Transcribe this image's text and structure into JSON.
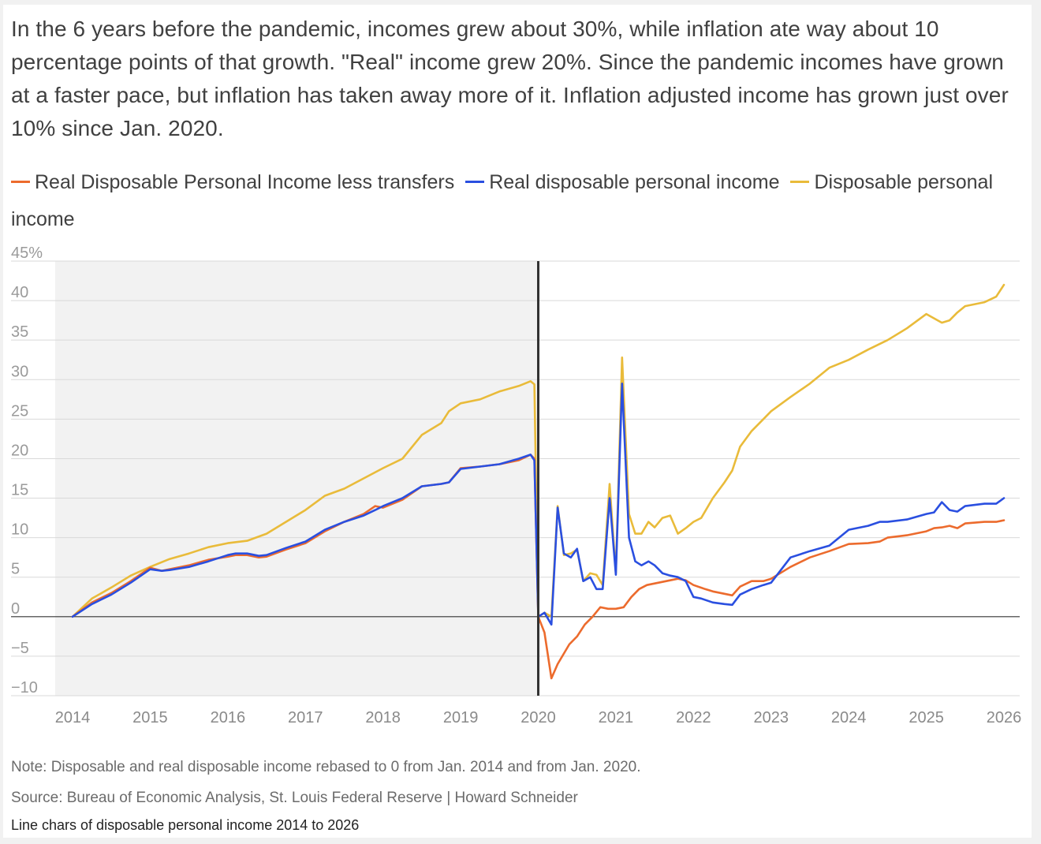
{
  "title": "In the 6 years before the pandemic, incomes grew about 30%, while inflation ate way about 10 percentage points of that growth. \"Real\" income grew 20%. Since the pandemic incomes have grown at a faster pace, but inflation has taken away more of it. Inflation adjusted income has grown just over 10% since Jan. 2020.",
  "note": "Note: Disposable and real disposable income rebased to 0 from Jan. 2014 and from Jan. 2020.",
  "source": "Source: Bureau of Economic Analysis, St. Louis Federal Reserve | Howard Schneider",
  "caption": "Line chars of disposable personal income 2014 to 2026",
  "colors": {
    "orange": "#ec6b2d",
    "blue": "#2a4fe0",
    "gold": "#e9bb3a",
    "shade": "#f2f2f2",
    "grid": "#d9d9d9",
    "divider": "#333333"
  },
  "chart_data": {
    "type": "line",
    "yunit": "%",
    "ylim": [
      -10,
      45
    ],
    "yticks": [
      -10,
      -5,
      0,
      5,
      10,
      15,
      20,
      25,
      30,
      35,
      40,
      45
    ],
    "xlim": [
      2014,
      2026
    ],
    "xticks": [
      2014,
      2015,
      2016,
      2017,
      2018,
      2019,
      2020,
      2021,
      2022,
      2023,
      2024,
      2025,
      2026
    ],
    "shaded_range": [
      2014,
      2020
    ],
    "divider_x": 2020,
    "grid": true,
    "legend_position": "top",
    "series": [
      {
        "name": "Real Disposable Personal Income less transfers",
        "color": "#ec6b2d",
        "x": [
          2014.0,
          2014.25,
          2014.5,
          2014.75,
          2015.0,
          2015.15,
          2015.25,
          2015.5,
          2015.75,
          2016.0,
          2016.1,
          2016.25,
          2016.4,
          2016.5,
          2016.75,
          2017.0,
          2017.25,
          2017.5,
          2017.75,
          2017.9,
          2018.0,
          2018.25,
          2018.5,
          2018.75,
          2018.85,
          2019.0,
          2019.25,
          2019.5,
          2019.75,
          2019.9,
          2019.95,
          2020.0,
          2020.08,
          2020.17,
          2020.25,
          2020.4,
          2020.5,
          2020.6,
          2020.7,
          2020.8,
          2020.9,
          2021.0,
          2021.1,
          2021.2,
          2021.3,
          2021.4,
          2021.5,
          2021.6,
          2021.7,
          2021.8,
          2021.9,
          2022.0,
          2022.15,
          2022.25,
          2022.35,
          2022.5,
          2022.6,
          2022.75,
          2022.9,
          2023.0,
          2023.25,
          2023.5,
          2023.75,
          2024.0,
          2024.25,
          2024.4,
          2024.5,
          2024.75,
          2025.0,
          2025.1,
          2025.2,
          2025.3,
          2025.4,
          2025.5,
          2025.75,
          2025.9,
          2026.0
        ],
        "values": [
          0,
          1.8,
          3.0,
          4.5,
          6.2,
          5.8,
          6.0,
          6.5,
          7.2,
          7.6,
          7.8,
          7.8,
          7.5,
          7.6,
          8.5,
          9.3,
          10.8,
          12.0,
          13.0,
          14.0,
          13.8,
          14.8,
          16.5,
          16.8,
          17.0,
          18.8,
          19.0,
          19.3,
          19.8,
          20.5,
          20.0,
          0,
          -2.0,
          -7.8,
          -6.0,
          -3.5,
          -2.5,
          -1.0,
          0.0,
          1.2,
          1.0,
          1.0,
          1.2,
          2.5,
          3.5,
          4.0,
          4.2,
          4.4,
          4.6,
          4.8,
          4.6,
          4.0,
          3.5,
          3.2,
          3.0,
          2.7,
          3.8,
          4.5,
          4.5,
          4.8,
          6.3,
          7.5,
          8.3,
          9.2,
          9.3,
          9.5,
          10.0,
          10.3,
          10.8,
          11.2,
          11.3,
          11.5,
          11.2,
          11.8,
          12.0,
          12.0,
          12.2
        ]
      },
      {
        "name": "Real disposable personal income",
        "color": "#2a4fe0",
        "x": [
          2014.0,
          2014.25,
          2014.5,
          2014.75,
          2015.0,
          2015.15,
          2015.25,
          2015.5,
          2015.75,
          2016.0,
          2016.1,
          2016.25,
          2016.4,
          2016.5,
          2016.75,
          2017.0,
          2017.25,
          2017.5,
          2017.75,
          2017.9,
          2018.0,
          2018.25,
          2018.5,
          2018.75,
          2018.85,
          2019.0,
          2019.25,
          2019.5,
          2019.75,
          2019.9,
          2019.95,
          2020.0,
          2020.08,
          2020.17,
          2020.25,
          2020.33,
          2020.42,
          2020.5,
          2020.58,
          2020.67,
          2020.75,
          2020.83,
          2020.92,
          2021.0,
          2021.08,
          2021.17,
          2021.25,
          2021.33,
          2021.42,
          2021.5,
          2021.6,
          2021.7,
          2021.8,
          2021.9,
          2022.0,
          2022.1,
          2022.25,
          2022.4,
          2022.5,
          2022.6,
          2022.75,
          2022.9,
          2023.0,
          2023.25,
          2023.5,
          2023.75,
          2024.0,
          2024.25,
          2024.4,
          2024.5,
          2024.75,
          2025.0,
          2025.1,
          2025.2,
          2025.3,
          2025.4,
          2025.5,
          2025.75,
          2025.9,
          2026.0
        ],
        "values": [
          0,
          1.6,
          2.8,
          4.3,
          6.0,
          5.8,
          5.9,
          6.3,
          7.0,
          7.8,
          8.0,
          8.0,
          7.7,
          7.8,
          8.7,
          9.5,
          11.0,
          12.0,
          12.8,
          13.5,
          14.0,
          15.0,
          16.5,
          16.8,
          17.0,
          18.7,
          19.0,
          19.3,
          20.0,
          20.5,
          19.8,
          0,
          0.5,
          -1.0,
          13.8,
          8.0,
          7.5,
          8.6,
          4.5,
          5.0,
          3.5,
          3.5,
          15.0,
          5.3,
          29.5,
          10.0,
          7.0,
          6.5,
          7.0,
          6.5,
          5.5,
          5.2,
          5.0,
          4.5,
          2.5,
          2.3,
          1.8,
          1.6,
          1.5,
          2.8,
          3.5,
          4.0,
          4.3,
          7.5,
          8.3,
          9.0,
          11.0,
          11.5,
          12.0,
          12.0,
          12.3,
          13.0,
          13.2,
          14.5,
          13.5,
          13.3,
          14.0,
          14.3,
          14.3,
          15.0
        ]
      },
      {
        "name": "Disposable personal income",
        "color": "#e9bb3a",
        "x": [
          2014.0,
          2014.25,
          2014.5,
          2014.75,
          2015.0,
          2015.25,
          2015.5,
          2015.75,
          2016.0,
          2016.25,
          2016.5,
          2016.75,
          2017.0,
          2017.25,
          2017.5,
          2017.75,
          2018.0,
          2018.25,
          2018.5,
          2018.75,
          2018.85,
          2019.0,
          2019.25,
          2019.5,
          2019.75,
          2019.9,
          2019.95,
          2020.0,
          2020.08,
          2020.17,
          2020.25,
          2020.33,
          2020.42,
          2020.5,
          2020.58,
          2020.67,
          2020.75,
          2020.83,
          2020.92,
          2021.0,
          2021.08,
          2021.17,
          2021.25,
          2021.33,
          2021.42,
          2021.5,
          2021.6,
          2021.7,
          2021.8,
          2021.9,
          2022.0,
          2022.1,
          2022.25,
          2022.4,
          2022.5,
          2022.6,
          2022.75,
          2022.9,
          2023.0,
          2023.25,
          2023.5,
          2023.75,
          2024.0,
          2024.25,
          2024.5,
          2024.75,
          2025.0,
          2025.2,
          2025.3,
          2025.4,
          2025.5,
          2025.75,
          2025.9,
          2026.0
        ],
        "values": [
          0,
          2.3,
          3.7,
          5.2,
          6.3,
          7.3,
          8.0,
          8.8,
          9.3,
          9.6,
          10.5,
          12.0,
          13.5,
          15.3,
          16.2,
          17.5,
          18.8,
          20.0,
          23.0,
          24.5,
          26.0,
          27.0,
          27.5,
          28.5,
          29.2,
          29.8,
          29.4,
          0,
          0.5,
          0,
          14.0,
          7.8,
          8.0,
          8.5,
          4.5,
          5.5,
          5.3,
          4.0,
          16.8,
          5.5,
          32.8,
          13.0,
          10.5,
          10.5,
          12.0,
          11.3,
          12.5,
          12.8,
          10.5,
          11.2,
          12.0,
          12.5,
          15.0,
          17.0,
          18.5,
          21.5,
          23.5,
          25.0,
          26.0,
          27.8,
          29.5,
          31.5,
          32.5,
          33.8,
          35.0,
          36.5,
          38.3,
          37.2,
          37.5,
          38.5,
          39.3,
          39.8,
          40.5,
          42.0
        ]
      }
    ]
  }
}
